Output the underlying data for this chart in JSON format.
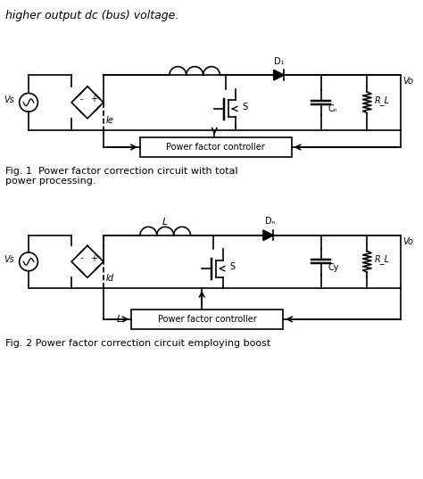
{
  "fig_width": 4.74,
  "fig_height": 5.37,
  "dpi": 100,
  "bg_color": "#ffffff",
  "line_color": "#000000",
  "line_width": 1.2,
  "header_text": "higher output dc (bus) voltage.",
  "fig1_caption": "Fig. 1  Power factor correction circuit with total\npower processing.",
  "fig2_caption": "Fig. 2 Power factor correction circuit employing boost"
}
